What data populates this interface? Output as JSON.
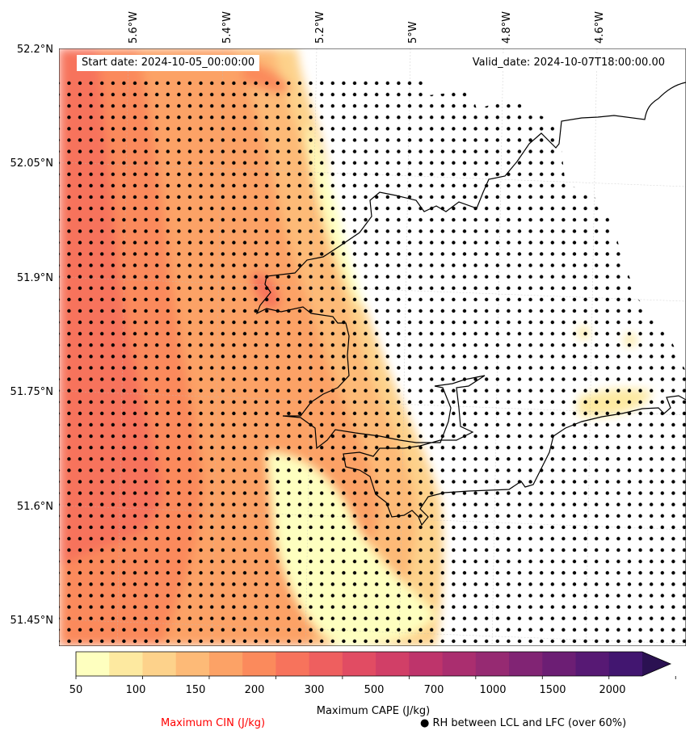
{
  "map": {
    "start_date": "Start date: 2024-10-05_00:00:00",
    "valid_date": "Valid_date: 2024-10-07T18:00:00.00",
    "lon_ticks": [
      "5.6°W",
      "5.4°W",
      "5.2°W",
      "5°W",
      "4.8°W",
      "4.6°W"
    ],
    "lat_ticks": [
      "52.2°N",
      "52.05°N",
      "51.9°N",
      "51.75°N",
      "51.6°N",
      "51.45°N"
    ],
    "colors": {
      "cape_scale": [
        "#feffbf",
        "#fde9a0",
        "#fdd28b",
        "#fdba77",
        "#fca266",
        "#fb8a5c",
        "#f7735c",
        "#ee5f5f",
        "#e14c63",
        "#d13f67",
        "#be346b",
        "#aa2e6f",
        "#962a72",
        "#812474",
        "#6c1e74",
        "#571974",
        "#421670",
        "#2b1152"
      ],
      "cin_text": "#ff0000"
    }
  },
  "colorbar": {
    "tick_labels": [
      "50",
      "100",
      "150",
      "200",
      "300",
      "500",
      "700",
      "1000",
      "1500",
      "2000"
    ],
    "title": "Maximum CAPE (J/kg)"
  },
  "footer": {
    "cin_label": "Maximum CIN (J/kg)",
    "rh_symbol": "●",
    "rh_label": "RH between LCL and LFC (over 60%)"
  }
}
